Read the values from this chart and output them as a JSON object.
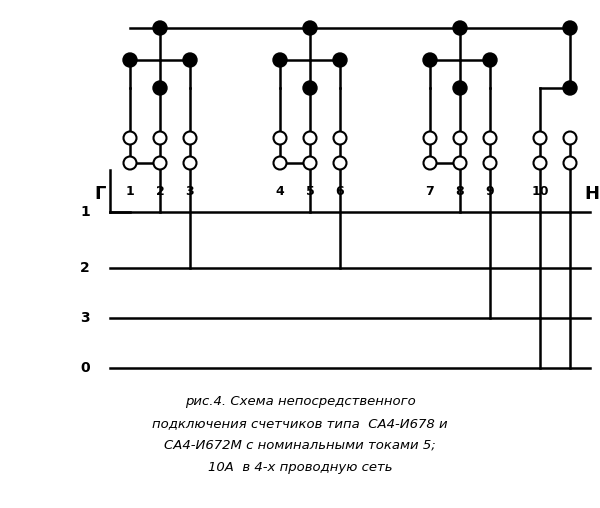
{
  "title_line1": "рис.4. Схема непосредственного",
  "title_line2": "подключения счетчиков типа  СА4-И678 и",
  "title_line3": "СА4-И672М с номинальными токами 5;",
  "title_line4": "10А  в 4-х проводную сеть",
  "bg_color": "#ffffff",
  "line_color": "#000000",
  "figsize": [
    6.0,
    5.08
  ],
  "dpi": 100,
  "label_G": "Г",
  "label_H": "Н"
}
